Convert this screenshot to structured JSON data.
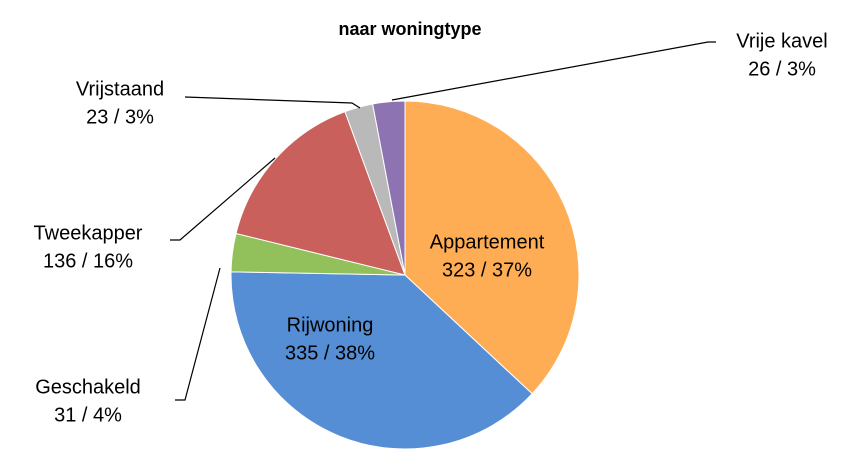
{
  "chart_data": {
    "type": "pie",
    "title": "naar woningtype",
    "categories": [
      "Appartement",
      "Rijwoning",
      "Geschakeld",
      "Tweekapper",
      "Vrijstaand",
      "Vrije kavel"
    ],
    "values": [
      323,
      335,
      31,
      136,
      23,
      26
    ],
    "value_labels": [
      "323 / 37%",
      "335 / 38%",
      "31 / 4%",
      "136 / 16%",
      "23 / 3%",
      "26 / 3%"
    ],
    "colors": [
      "#ffad55",
      "#558ed5",
      "#92c05a",
      "#c9605c",
      "#b9b9b9",
      "#8e73b2"
    ]
  }
}
